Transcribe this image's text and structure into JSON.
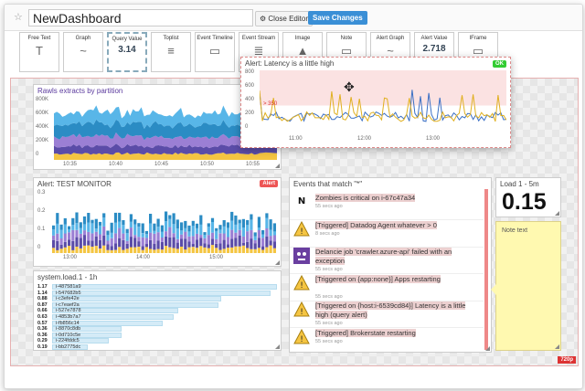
{
  "header": {
    "title": "NewDashboard",
    "close_label": "Close Editor",
    "save_label": "Save Changes"
  },
  "palette": [
    {
      "label": "Free Text",
      "glyph": "T"
    },
    {
      "label": "Graph",
      "glyph": "~"
    },
    {
      "label": "Query Value",
      "glyph": "3.14"
    },
    {
      "label": "Toplist",
      "glyph": "≡"
    },
    {
      "label": "Event Timeline",
      "glyph": "▭"
    },
    {
      "label": "Event Stream",
      "glyph": "≣"
    },
    {
      "label": "Image",
      "glyph": "▲"
    },
    {
      "label": "Note",
      "glyph": "▭"
    },
    {
      "label": "Alert Graph",
      "glyph": "~"
    },
    {
      "label": "Alert Value",
      "glyph": "2.718"
    },
    {
      "label": "IFrame",
      "glyph": "▭"
    }
  ],
  "widgets": {
    "rawls": {
      "title": "Rawls extracts by partition",
      "y_ticks": [
        "800K",
        "600K",
        "400K",
        "200K",
        "0"
      ],
      "x_ticks": [
        "10:35",
        "10:40",
        "10:45",
        "10:50",
        "10:55"
      ]
    },
    "latency": {
      "title": "Alert: Latency is a little high",
      "badge": "OK",
      "y_ticks": [
        "800",
        "600",
        "400",
        "200",
        "0"
      ],
      "threshold": "> 350",
      "x_ticks": [
        "11:00",
        "12:00",
        "13:00"
      ]
    },
    "test_monitor": {
      "title": "Alert: TEST MONITOR",
      "badge": "Alert",
      "y_ticks": [
        "0.3",
        "0.2",
        "0.1",
        "0"
      ],
      "x_ticks": [
        "13:00",
        "14:00",
        "15:00"
      ]
    },
    "events": {
      "title": "Events that match \"*\"",
      "items": [
        {
          "text": "Zombies is critical on i-67c47a34",
          "ago": "55 secs ago",
          "icon": "nagios"
        },
        {
          "text": "[Triggered] Datadog Agent whatever > 0",
          "ago": "8 secs ago",
          "icon": "warning"
        },
        {
          "text": "Delancie job 'crawler.azure-api' failed with an exception",
          "ago": "55 secs ago",
          "icon": "monster"
        },
        {
          "text": "[Triggered on {app:none}] Apps restarting",
          "ago": "55 secs ago",
          "icon": "warning"
        },
        {
          "text": "[Triggered on {host:i-6539cd84}] Latency is a little high (query alert)",
          "ago": "55 secs ago",
          "icon": "warning"
        },
        {
          "text": "[Triggered] Brokerstate restarting",
          "ago": "55 secs ago",
          "icon": "warning"
        }
      ]
    },
    "load": {
      "title": "Load 1 - 5m",
      "value": "0.15"
    },
    "note": {
      "text": "Note text"
    },
    "toplist": {
      "title": "system.load.1 - 1h",
      "rows": [
        {
          "value": "1.17",
          "name": "i-487581a9",
          "frac": 1.0
        },
        {
          "value": "1.14",
          "name": "i-547682b5",
          "frac": 0.97
        },
        {
          "value": "0.88",
          "name": "i-c3efe42e",
          "frac": 0.75
        },
        {
          "value": "0.87",
          "name": "i-c7eaef2a",
          "frac": 0.74
        },
        {
          "value": "0.66",
          "name": "i-527e7878",
          "frac": 0.56
        },
        {
          "value": "0.63",
          "name": "i-4853b7a7",
          "frac": 0.54
        },
        {
          "value": "0.57",
          "name": "i-fb856c14",
          "frac": 0.49
        },
        {
          "value": "0.36",
          "name": "i-8870c8db",
          "frac": 0.31
        },
        {
          "value": "0.36",
          "name": "i-0d710c5e",
          "frac": 0.31
        },
        {
          "value": "0.29",
          "name": "i-224fddc5",
          "frac": 0.25
        },
        {
          "value": "0.19",
          "name": "i-bb2775dc",
          "frac": 0.16
        }
      ]
    },
    "resolution": "720p"
  },
  "colors": {
    "accent": "#3a8fd6",
    "alert": "#e55555",
    "ok": "#33cc33",
    "note_bg": "#fff9b0"
  }
}
